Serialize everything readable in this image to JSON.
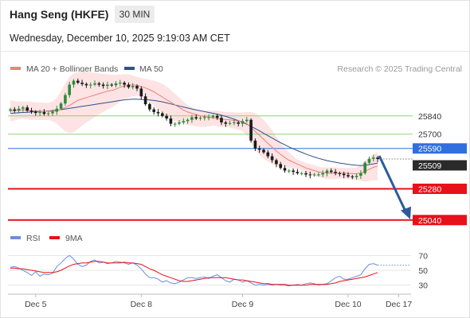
{
  "header": {
    "instrument": "Hang Seng (HKFE)",
    "timeframe": "30 MIN",
    "datetime": "Wednesday, December 10, 2025 9:19:03 AM CET"
  },
  "legend": {
    "ma20_label": "MA 20 + Bollinger Bands",
    "ma50_label": "MA 50",
    "copyright": "Research © 2025 Trading Central",
    "rsi_label": "RSI",
    "rsi_ma_label": "9MA"
  },
  "colors": {
    "ma20": "#ef7f7f",
    "ma50": "#2f4f8f",
    "bollinger_fill": "#fde3e3",
    "candle_up": "#2e8b3a",
    "candle_down": "#1a1a1a",
    "resistance": "#8fd07a",
    "support": "#e8101a",
    "pivot": "#2f6fe0",
    "current": "#2a2a2a",
    "arrow": "#2d5a99",
    "rsi": "#6d8de0",
    "rsi_ma": "#e8101a"
  },
  "chart_data": {
    "type": "candlestick",
    "x_ticks": [
      "Dec 5",
      "Dec 8",
      "Dec 9",
      "Dec 10",
      "Dec 17"
    ],
    "price_range": [
      24990,
      26150
    ],
    "levels": [
      {
        "label": "25840",
        "value": 25840,
        "kind": "resistance"
      },
      {
        "label": "25700",
        "value": 25700,
        "kind": "resistance"
      },
      {
        "label": "25590",
        "value": 25590,
        "kind": "pivot"
      },
      {
        "label": "25509",
        "value": 25509,
        "kind": "current"
      },
      {
        "label": "25280",
        "value": 25280,
        "kind": "support"
      },
      {
        "label": "25040",
        "value": 25040,
        "kind": "support"
      }
    ],
    "close": [
      25890,
      25880,
      25895,
      25905,
      25880,
      25872,
      25862,
      25870,
      25855,
      25860,
      25872,
      25895,
      25935,
      26000,
      26080,
      26110,
      26095,
      26085,
      26075,
      26080,
      26090,
      26080,
      26070,
      26080,
      26075,
      26090,
      26095,
      26080,
      26060,
      26070,
      26050,
      25990,
      25930,
      25890,
      25870,
      25860,
      25840,
      25820,
      25780,
      25780,
      25790,
      25800,
      25810,
      25830,
      25820,
      25825,
      25830,
      25830,
      25840,
      25825,
      25790,
      25780,
      25785,
      25790,
      25780,
      25800,
      25810,
      25650,
      25590,
      25580,
      25560,
      25530,
      25500,
      25470,
      25440,
      25420,
      25420,
      25410,
      25400,
      25400,
      25390,
      25385,
      25390,
      25390,
      25400,
      25420,
      25410,
      25400,
      25395,
      25385,
      25375,
      25370,
      25380,
      25400,
      25480,
      25510,
      25520,
      25509
    ],
    "ma20": [
      25880,
      25880,
      25885,
      25885,
      25885,
      25880,
      25878,
      25876,
      25875,
      25875,
      25875,
      25880,
      25890,
      25905,
      25920,
      25940,
      25960,
      25970,
      25980,
      25990,
      26000,
      26010,
      26020,
      26030,
      26035,
      26045,
      26060,
      26070,
      26075,
      26078,
      26075,
      26065,
      26055,
      26040,
      26025,
      26005,
      25985,
      25965,
      25945,
      25925,
      25905,
      25885,
      25870,
      25860,
      25850,
      25840,
      25835,
      25830,
      25825,
      25820,
      25815,
      25812,
      25810,
      25805,
      25800,
      25795,
      25780,
      25755,
      25720,
      25690,
      25660,
      25630,
      25600,
      25570,
      25545,
      25520,
      25500,
      25485,
      25470,
      25455,
      25440,
      25430,
      25420,
      25410,
      25405,
      25400,
      25400,
      25400,
      25400,
      25400,
      25398,
      25396,
      25396,
      25400,
      25415,
      25430,
      25445,
      25455
    ],
    "ma50": [
      25860,
      25862,
      25864,
      25866,
      25868,
      25870,
      25872,
      25874,
      25876,
      25878,
      25880,
      25884,
      25888,
      25893,
      25898,
      25903,
      25908,
      25913,
      25918,
      25923,
      25928,
      25933,
      25938,
      25943,
      25948,
      25953,
      25958,
      25963,
      25966,
      25968,
      25968,
      25966,
      25964,
      25962,
      25958,
      25954,
      25948,
      25940,
      25932,
      25924,
      25916,
      25908,
      25900,
      25893,
      25886,
      25880,
      25873,
      25866,
      25860,
      25853,
      25845,
      25836,
      25826,
      25815,
      25803,
      25790,
      25776,
      25760,
      25743,
      25725,
      25706,
      25688,
      25670,
      25652,
      25634,
      25618,
      25602,
      25587,
      25573,
      25560,
      25547,
      25535,
      25524,
      25514,
      25505,
      25497,
      25490,
      25484,
      25478,
      25473,
      25468,
      25464,
      25461,
      25459,
      25461,
      25466,
      25472,
      25478
    ],
    "bb_upper": [
      25960,
      25955,
      25950,
      25950,
      25950,
      25948,
      25945,
      25943,
      25940,
      25940,
      25950,
      25980,
      26030,
      26090,
      26140,
      26165,
      26175,
      26178,
      26178,
      26175,
      26170,
      26165,
      26162,
      26158,
      26155,
      26155,
      26158,
      26160,
      26160,
      26150,
      26140,
      26130,
      26125,
      26118,
      26110,
      26100,
      26085,
      26065,
      26040,
      26010,
      25980,
      25950,
      25925,
      25905,
      25890,
      25880,
      25880,
      25880,
      25880,
      25880,
      25875,
      25870,
      25870,
      25868,
      25866,
      25866,
      25870,
      25870,
      25860,
      25840,
      25810,
      25770,
      25730,
      25680,
      25630,
      25590,
      25560,
      25530,
      25505,
      25490,
      25480,
      25470,
      25460,
      25450,
      25445,
      25445,
      25445,
      25445,
      25442,
      25440,
      25440,
      25440,
      25445,
      25460,
      25495,
      25520,
      25545,
      25565
    ],
    "bb_lower": [
      25800,
      25805,
      25815,
      25820,
      25815,
      25810,
      25810,
      25808,
      25808,
      25810,
      25800,
      25780,
      25750,
      25720,
      25710,
      25715,
      25740,
      25765,
      25790,
      25810,
      25830,
      25850,
      25870,
      25890,
      25905,
      25925,
      25950,
      25970,
      25980,
      25990,
      25995,
      25990,
      25975,
      25950,
      25920,
      25890,
      25860,
      25830,
      25810,
      25800,
      25790,
      25780,
      25770,
      25765,
      25760,
      25755,
      25755,
      25760,
      25765,
      25760,
      25755,
      25755,
      25750,
      25742,
      25734,
      25724,
      25690,
      25640,
      25580,
      25540,
      25510,
      25490,
      25470,
      25460,
      25450,
      25450,
      25440,
      25440,
      25435,
      25420,
      25400,
      25390,
      25380,
      25370,
      25365,
      25355,
      25355,
      25355,
      25358,
      25360,
      25356,
      25352,
      25347,
      25340,
      25335,
      25340,
      25345,
      25345
    ],
    "rsi_ticks": [
      30,
      50,
      70
    ],
    "rsi_range": [
      20,
      80
    ],
    "rsi": [
      54,
      55,
      53,
      50,
      47,
      43,
      48,
      42,
      45,
      44,
      46,
      55,
      60,
      66,
      70,
      65,
      58,
      55,
      57,
      62,
      64,
      60,
      61,
      59,
      60,
      62,
      61,
      60,
      58,
      60,
      57,
      52,
      45,
      40,
      40,
      38,
      34,
      36,
      33,
      32,
      34,
      37,
      40,
      40,
      39,
      40,
      41,
      39,
      42,
      44,
      40,
      36,
      34,
      38,
      37,
      34,
      36,
      33,
      30,
      31,
      30,
      31,
      30,
      31,
      30,
      30,
      29,
      30,
      31,
      30,
      32,
      33,
      32,
      30,
      31,
      32,
      36,
      40,
      42,
      38,
      38,
      40,
      42,
      44,
      52,
      58,
      59,
      57
    ],
    "rsi_ma": [
      53,
      53,
      52,
      52,
      51,
      50,
      49,
      48,
      47,
      47,
      47,
      48,
      50,
      53,
      56,
      58,
      59,
      60,
      60,
      61,
      62,
      62,
      61,
      60,
      60,
      60,
      60,
      61,
      60,
      60,
      59,
      58,
      55,
      52,
      50,
      47,
      44,
      42,
      40,
      38,
      36,
      35,
      35,
      36,
      37,
      38,
      39,
      40,
      40,
      40,
      40,
      40,
      39,
      38,
      37,
      37,
      36,
      35,
      34,
      33,
      32,
      32,
      31,
      31,
      31,
      31,
      30,
      30,
      30,
      30,
      30,
      31,
      31,
      31,
      31,
      31,
      32,
      33,
      35,
      36,
      37,
      38,
      39,
      40,
      41,
      43,
      45,
      47
    ]
  }
}
